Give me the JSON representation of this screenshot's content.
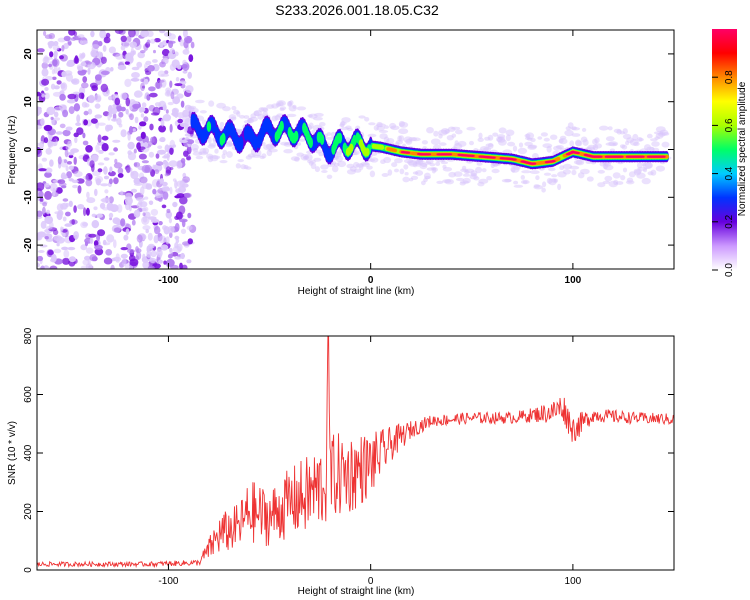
{
  "title": "S233.2026.001.18.05.C32",
  "chart_data": [
    {
      "type": "heatmap",
      "xlabel": "Height of straight line (km)",
      "ylabel": "Frequency (Hz)",
      "xlim": [
        -165,
        150
      ],
      "ylim": [
        -25,
        25
      ],
      "xticks": [
        -100,
        0,
        100
      ],
      "yticks": [
        -20,
        -10,
        0,
        10,
        20
      ],
      "colorbar": {
        "label": "Normalized spectral amplitude",
        "range": [
          0,
          1
        ],
        "ticks": [
          0.0,
          0.2,
          0.4,
          0.6,
          0.8
        ],
        "colors": [
          "#ffffff",
          "#cc99ff",
          "#6600dd",
          "#0033ff",
          "#00ccff",
          "#00ff66",
          "#aaff00",
          "#ffff00",
          "#ff8800",
          "#ff0000",
          "#ff0066"
        ]
      },
      "noise_region_x": [
        -165,
        -88
      ],
      "signal_track": {
        "x": [
          -88,
          -80,
          -70,
          -60,
          -50,
          -40,
          -30,
          -22,
          -15,
          -5,
          5,
          15,
          25,
          40,
          55,
          70,
          80,
          90,
          95,
          100,
          110,
          120,
          130,
          140,
          147
        ],
        "y": [
          4.5,
          4,
          3,
          2,
          4,
          4,
          3,
          0,
          1,
          1,
          0.5,
          -0.5,
          -1,
          -1,
          -1.5,
          -2,
          -3,
          -2.5,
          -1.5,
          -0.5,
          -1.5,
          -1.5,
          -1.5,
          -1.5,
          -1.5
        ],
        "amplitude": [
          0.25,
          0.3,
          0.3,
          0.25,
          0.3,
          0.35,
          0.35,
          0.3,
          0.4,
          0.5,
          0.6,
          0.8,
          0.85,
          0.85,
          0.9,
          0.9,
          0.85,
          0.8,
          0.75,
          0.85,
          0.9,
          0.9,
          0.9,
          0.9,
          0.9
        ]
      }
    },
    {
      "type": "line",
      "xlabel": "Height of straight line (km)",
      "ylabel": "SNR (10 * v/v)",
      "xlim": [
        -165,
        150
      ],
      "ylim": [
        0,
        800
      ],
      "xticks": [
        -100,
        0,
        100
      ],
      "yticks": [
        0,
        200,
        400,
        600,
        800
      ],
      "color": "#ee3333",
      "series": {
        "x": [
          -165,
          -140,
          -110,
          -85,
          -80,
          -75,
          -65,
          -60,
          -50,
          -40,
          -30,
          -22,
          -21,
          -20,
          -10,
          0,
          10,
          20,
          30,
          50,
          70,
          80,
          90,
          95,
          100,
          110,
          130,
          150
        ],
        "y": [
          20,
          20,
          20,
          25,
          70,
          120,
          150,
          200,
          180,
          230,
          260,
          300,
          800,
          320,
          330,
          360,
          430,
          480,
          510,
          520,
          520,
          530,
          540,
          560,
          480,
          530,
          520,
          515
        ],
        "spread": [
          8,
          8,
          8,
          10,
          40,
          70,
          80,
          110,
          100,
          120,
          140,
          150,
          0,
          150,
          140,
          110,
          60,
          30,
          20,
          20,
          20,
          25,
          40,
          50,
          50,
          25,
          20,
          20
        ]
      }
    }
  ]
}
